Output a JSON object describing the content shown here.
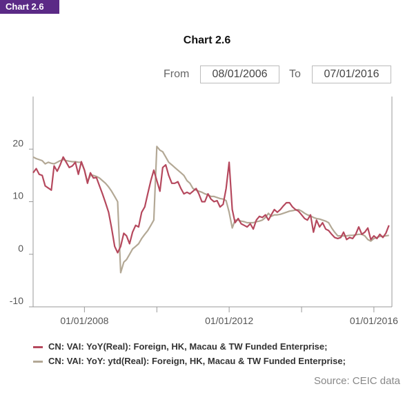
{
  "badge": "Chart 2.6",
  "title": "Chart 2.6",
  "range": {
    "from_label": "From",
    "from_value": "08/01/2006",
    "to_label": "To",
    "to_value": "07/01/2016"
  },
  "source": "Source: CEIC data",
  "colors": {
    "series1": "#b5485d",
    "series2": "#b3a895",
    "axis": "#999999",
    "grid": "#dddddd"
  },
  "chart_data": {
    "type": "line",
    "xlabel": "",
    "ylabel": "",
    "xlim": [
      "2006-08-01",
      "2016-07-01"
    ],
    "ylim": [
      -10,
      30
    ],
    "yticks": [
      20,
      10,
      0,
      -10
    ],
    "ytick_labels": [
      "20",
      "10",
      "0",
      "-10"
    ],
    "xtick_labels": [
      {
        "date": "2008-01-01",
        "label": "01/01/2008"
      },
      {
        "date": "2012-01-01",
        "label": "01/01/2012"
      },
      {
        "date": "2016-01-01",
        "label": "01/01/2016"
      }
    ],
    "xminor_ticks": [
      "2010-01-01",
      "2014-01-01"
    ],
    "legend_position": "bottom",
    "series": [
      {
        "name": "CN: VAI: YoY(Real): Foreign, HK, Macau & TW Funded Enterprise;",
        "points": [
          [
            "2006-08-01",
            15.5
          ],
          [
            "2006-09-01",
            16.3
          ],
          [
            "2006-10-01",
            15.2
          ],
          [
            "2006-11-01",
            15.0
          ],
          [
            "2006-12-01",
            13.0
          ],
          [
            "2007-01-01",
            12.6
          ],
          [
            "2007-02-01",
            12.2
          ],
          [
            "2007-03-01",
            16.8
          ],
          [
            "2007-04-01",
            15.8
          ],
          [
            "2007-05-01",
            17.0
          ],
          [
            "2007-06-01",
            18.5
          ],
          [
            "2007-07-01",
            17.5
          ],
          [
            "2007-08-01",
            16.5
          ],
          [
            "2007-09-01",
            16.8
          ],
          [
            "2007-10-01",
            17.5
          ],
          [
            "2007-11-01",
            15.2
          ],
          [
            "2007-12-01",
            17.6
          ],
          [
            "2008-01-01",
            16.0
          ],
          [
            "2008-02-01",
            13.5
          ],
          [
            "2008-03-01",
            15.5
          ],
          [
            "2008-04-01",
            14.5
          ],
          [
            "2008-05-01",
            14.6
          ],
          [
            "2008-06-01",
            13.0
          ],
          [
            "2008-07-01",
            11.5
          ],
          [
            "2008-08-01",
            9.8
          ],
          [
            "2008-09-01",
            8.0
          ],
          [
            "2008-10-01",
            5.0
          ],
          [
            "2008-11-01",
            1.5
          ],
          [
            "2008-12-01",
            0.3
          ],
          [
            "2009-01-01",
            1.5
          ],
          [
            "2009-02-01",
            4.0
          ],
          [
            "2009-03-01",
            3.5
          ],
          [
            "2009-04-01",
            2.0
          ],
          [
            "2009-05-01",
            4.2
          ],
          [
            "2009-06-01",
            5.5
          ],
          [
            "2009-07-01",
            5.2
          ],
          [
            "2009-08-01",
            8.0
          ],
          [
            "2009-09-01",
            9.0
          ],
          [
            "2009-10-01",
            11.5
          ],
          [
            "2009-11-01",
            14.0
          ],
          [
            "2009-12-01",
            16.0
          ],
          [
            "2010-01-01",
            14.0
          ],
          [
            "2010-02-01",
            12.0
          ],
          [
            "2010-03-01",
            16.5
          ],
          [
            "2010-04-01",
            17.0
          ],
          [
            "2010-05-01",
            15.0
          ],
          [
            "2010-06-01",
            13.5
          ],
          [
            "2010-07-01",
            13.5
          ],
          [
            "2010-08-01",
            13.8
          ],
          [
            "2010-09-01",
            12.5
          ],
          [
            "2010-10-01",
            11.5
          ],
          [
            "2010-11-01",
            11.8
          ],
          [
            "2010-12-01",
            11.5
          ],
          [
            "2011-01-01",
            12.0
          ],
          [
            "2011-02-01",
            12.5
          ],
          [
            "2011-03-01",
            11.5
          ],
          [
            "2011-04-01",
            10.0
          ],
          [
            "2011-05-01",
            10.0
          ],
          [
            "2011-06-01",
            11.5
          ],
          [
            "2011-07-01",
            10.5
          ],
          [
            "2011-08-01",
            10.0
          ],
          [
            "2011-09-01",
            10.2
          ],
          [
            "2011-10-01",
            9.0
          ],
          [
            "2011-11-01",
            9.5
          ],
          [
            "2011-12-01",
            12.5
          ],
          [
            "2012-01-01",
            17.5
          ],
          [
            "2012-02-01",
            8.5
          ],
          [
            "2012-03-01",
            6.0
          ],
          [
            "2012-04-01",
            6.8
          ],
          [
            "2012-05-01",
            5.8
          ],
          [
            "2012-06-01",
            5.5
          ],
          [
            "2012-07-01",
            5.2
          ],
          [
            "2012-08-01",
            5.8
          ],
          [
            "2012-09-01",
            4.8
          ],
          [
            "2012-10-01",
            6.5
          ],
          [
            "2012-11-01",
            7.2
          ],
          [
            "2012-12-01",
            7.0
          ],
          [
            "2013-01-01",
            7.5
          ],
          [
            "2013-02-01",
            6.5
          ],
          [
            "2013-03-01",
            7.5
          ],
          [
            "2013-04-01",
            8.5
          ],
          [
            "2013-05-01",
            8.0
          ],
          [
            "2013-06-01",
            8.5
          ],
          [
            "2013-07-01",
            9.2
          ],
          [
            "2013-08-01",
            9.8
          ],
          [
            "2013-09-01",
            9.8
          ],
          [
            "2013-10-01",
            9.0
          ],
          [
            "2013-11-01",
            8.5
          ],
          [
            "2013-12-01",
            8.2
          ],
          [
            "2014-01-01",
            7.5
          ],
          [
            "2014-02-01",
            6.8
          ],
          [
            "2014-03-01",
            6.5
          ],
          [
            "2014-04-01",
            7.5
          ],
          [
            "2014-05-01",
            4.2
          ],
          [
            "2014-06-01",
            6.5
          ],
          [
            "2014-07-01",
            5.2
          ],
          [
            "2014-08-01",
            6.0
          ],
          [
            "2014-09-01",
            4.8
          ],
          [
            "2014-10-01",
            4.5
          ],
          [
            "2014-11-01",
            3.8
          ],
          [
            "2014-12-01",
            3.2
          ],
          [
            "2015-01-01",
            3.0
          ],
          [
            "2015-02-01",
            3.2
          ],
          [
            "2015-03-01",
            4.2
          ],
          [
            "2015-04-01",
            2.8
          ],
          [
            "2015-05-01",
            3.2
          ],
          [
            "2015-06-01",
            3.0
          ],
          [
            "2015-07-01",
            3.8
          ],
          [
            "2015-08-01",
            5.2
          ],
          [
            "2015-09-01",
            3.8
          ],
          [
            "2015-10-01",
            4.2
          ],
          [
            "2015-11-01",
            5.0
          ],
          [
            "2015-12-01",
            2.8
          ],
          [
            "2016-01-01",
            3.5
          ],
          [
            "2016-02-01",
            3.0
          ],
          [
            "2016-03-01",
            3.8
          ],
          [
            "2016-04-01",
            3.2
          ],
          [
            "2016-05-01",
            4.0
          ],
          [
            "2016-06-01",
            5.5
          ]
        ]
      },
      {
        "name": "CN: VAI: YoY: ytd(Real): Foreign, HK, Macau & TW Funded Enterprise;",
        "points": [
          [
            "2006-08-01",
            18.5
          ],
          [
            "2006-09-01",
            18.2
          ],
          [
            "2006-10-01",
            18.0
          ],
          [
            "2006-11-01",
            17.8
          ],
          [
            "2006-12-01",
            17.2
          ],
          [
            "2007-01-01",
            17.5
          ],
          [
            "2007-02-01",
            17.3
          ],
          [
            "2007-03-01",
            17.2
          ],
          [
            "2007-04-01",
            17.5
          ],
          [
            "2007-05-01",
            17.8
          ],
          [
            "2007-06-01",
            18.0
          ],
          [
            "2007-07-01",
            17.8
          ],
          [
            "2007-08-01",
            17.7
          ],
          [
            "2007-09-01",
            17.6
          ],
          [
            "2007-10-01",
            17.6
          ],
          [
            "2007-11-01",
            17.5
          ],
          [
            "2007-12-01",
            17.5
          ],
          [
            "2008-01-01",
            16.0
          ],
          [
            "2008-02-01",
            13.8
          ],
          [
            "2008-03-01",
            15.0
          ],
          [
            "2008-04-01",
            15.0
          ],
          [
            "2008-05-01",
            14.8
          ],
          [
            "2008-06-01",
            14.5
          ],
          [
            "2008-07-01",
            14.0
          ],
          [
            "2008-08-01",
            13.5
          ],
          [
            "2008-09-01",
            12.8
          ],
          [
            "2008-10-01",
            12.0
          ],
          [
            "2008-11-01",
            11.0
          ],
          [
            "2008-12-01",
            10.0
          ],
          [
            "2009-01-01",
            -3.5
          ],
          [
            "2009-02-01",
            -1.5
          ],
          [
            "2009-03-01",
            -1.0
          ],
          [
            "2009-04-01",
            0.0
          ],
          [
            "2009-05-01",
            1.0
          ],
          [
            "2009-06-01",
            1.5
          ],
          [
            "2009-07-01",
            2.0
          ],
          [
            "2009-08-01",
            3.0
          ],
          [
            "2009-09-01",
            3.8
          ],
          [
            "2009-10-01",
            4.5
          ],
          [
            "2009-11-01",
            5.5
          ],
          [
            "2009-12-01",
            6.5
          ],
          [
            "2010-01-01",
            20.5
          ],
          [
            "2010-02-01",
            19.8
          ],
          [
            "2010-03-01",
            19.5
          ],
          [
            "2010-04-01",
            18.5
          ],
          [
            "2010-05-01",
            17.5
          ],
          [
            "2010-06-01",
            17.0
          ],
          [
            "2010-07-01",
            16.5
          ],
          [
            "2010-08-01",
            16.0
          ],
          [
            "2010-09-01",
            15.5
          ],
          [
            "2010-10-01",
            15.0
          ],
          [
            "2010-11-01",
            14.0
          ],
          [
            "2010-12-01",
            13.5
          ],
          [
            "2011-01-01",
            12.5
          ],
          [
            "2011-02-01",
            12.2
          ],
          [
            "2011-03-01",
            12.0
          ],
          [
            "2011-04-01",
            11.8
          ],
          [
            "2011-05-01",
            11.5
          ],
          [
            "2011-06-01",
            11.3
          ],
          [
            "2011-07-01",
            11.0
          ],
          [
            "2011-08-01",
            11.0
          ],
          [
            "2011-09-01",
            10.8
          ],
          [
            "2011-10-01",
            10.6
          ],
          [
            "2011-11-01",
            10.5
          ],
          [
            "2011-12-01",
            10.2
          ],
          [
            "2012-01-01",
            8.0
          ],
          [
            "2012-02-01",
            5.0
          ],
          [
            "2012-03-01",
            6.5
          ],
          [
            "2012-04-01",
            6.5
          ],
          [
            "2012-05-01",
            6.3
          ],
          [
            "2012-06-01",
            6.2
          ],
          [
            "2012-07-01",
            6.0
          ],
          [
            "2012-08-01",
            6.0
          ],
          [
            "2012-09-01",
            6.0
          ],
          [
            "2012-10-01",
            6.2
          ],
          [
            "2012-11-01",
            6.3
          ],
          [
            "2012-12-01",
            6.5
          ],
          [
            "2013-01-01",
            7.0
          ],
          [
            "2013-02-01",
            7.8
          ],
          [
            "2013-03-01",
            7.2
          ],
          [
            "2013-04-01",
            7.5
          ],
          [
            "2013-05-01",
            7.5
          ],
          [
            "2013-06-01",
            7.6
          ],
          [
            "2013-07-01",
            7.8
          ],
          [
            "2013-08-01",
            8.0
          ],
          [
            "2013-09-01",
            8.2
          ],
          [
            "2013-10-01",
            8.3
          ],
          [
            "2013-11-01",
            8.4
          ],
          [
            "2013-12-01",
            8.5
          ],
          [
            "2014-01-01",
            8.2
          ],
          [
            "2014-02-01",
            7.8
          ],
          [
            "2014-03-01",
            7.5
          ],
          [
            "2014-04-01",
            7.3
          ],
          [
            "2014-05-01",
            7.0
          ],
          [
            "2014-06-01",
            6.8
          ],
          [
            "2014-07-01",
            6.7
          ],
          [
            "2014-08-01",
            6.5
          ],
          [
            "2014-09-01",
            6.3
          ],
          [
            "2014-10-01",
            6.0
          ],
          [
            "2014-11-01",
            5.0
          ],
          [
            "2014-12-01",
            4.2
          ],
          [
            "2015-01-01",
            3.5
          ],
          [
            "2015-02-01",
            3.5
          ],
          [
            "2015-03-01",
            3.5
          ],
          [
            "2015-04-01",
            3.5
          ],
          [
            "2015-05-01",
            3.6
          ],
          [
            "2015-06-01",
            3.6
          ],
          [
            "2015-07-01",
            3.7
          ],
          [
            "2015-08-01",
            3.8
          ],
          [
            "2015-09-01",
            3.8
          ],
          [
            "2015-10-01",
            3.5
          ],
          [
            "2015-11-01",
            2.8
          ],
          [
            "2015-12-01",
            2.5
          ],
          [
            "2016-01-01",
            3.0
          ],
          [
            "2016-02-01",
            3.2
          ],
          [
            "2016-03-01",
            3.4
          ],
          [
            "2016-04-01",
            3.4
          ],
          [
            "2016-05-01",
            3.5
          ],
          [
            "2016-06-01",
            3.6
          ]
        ]
      }
    ]
  }
}
